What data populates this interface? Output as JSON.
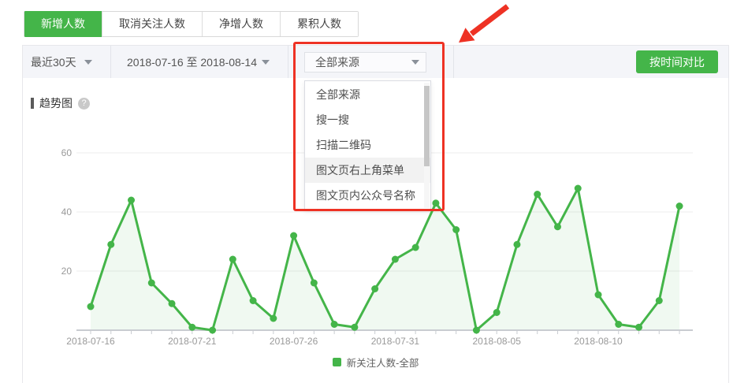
{
  "tabs": [
    {
      "label": "新增人数",
      "active": true
    },
    {
      "label": "取消关注人数",
      "active": false
    },
    {
      "label": "净增人数",
      "active": false
    },
    {
      "label": "累积人数",
      "active": false
    }
  ],
  "filters": {
    "range_select": "最近30天",
    "date_range": "2018-07-16 至 2018-08-14",
    "source_select": "全部来源",
    "compare_button": "按时间对比"
  },
  "source_dropdown": {
    "options": [
      {
        "label": "全部来源",
        "highlighted": false
      },
      {
        "label": "搜一搜",
        "highlighted": false
      },
      {
        "label": "扫描二维码",
        "highlighted": false
      },
      {
        "label": "图文页右上角菜单",
        "highlighted": true
      },
      {
        "label": "图文页内公众号名称",
        "highlighted": false
      }
    ]
  },
  "section": {
    "title": "趋势图",
    "help_icon": "?"
  },
  "chart_data": {
    "type": "line",
    "title": "趋势图",
    "x": [
      "2018-07-16",
      "2018-07-17",
      "2018-07-18",
      "2018-07-19",
      "2018-07-20",
      "2018-07-21",
      "2018-07-22",
      "2018-07-23",
      "2018-07-24",
      "2018-07-25",
      "2018-07-26",
      "2018-07-27",
      "2018-07-28",
      "2018-07-29",
      "2018-07-30",
      "2018-07-31",
      "2018-08-01",
      "2018-08-02",
      "2018-08-03",
      "2018-08-04",
      "2018-08-05",
      "2018-08-06",
      "2018-08-07",
      "2018-08-08",
      "2018-08-09",
      "2018-08-10",
      "2018-08-11",
      "2018-08-12",
      "2018-08-13",
      "2018-08-14"
    ],
    "series": [
      {
        "name": "新关注人数-全部",
        "color": "#44b549",
        "values": [
          8,
          29,
          44,
          16,
          9,
          1,
          0,
          24,
          10,
          4,
          32,
          16,
          2,
          1,
          14,
          24,
          28,
          43,
          34,
          0,
          6,
          29,
          46,
          35,
          48,
          12,
          2,
          1,
          10,
          42
        ]
      }
    ],
    "y_ticks": [
      20,
      40,
      60
    ],
    "ylim": [
      0,
      60
    ],
    "x_tick_labels": [
      "2018-07-16",
      "2018-07-21",
      "2018-07-26",
      "2018-07-31",
      "2018-08-05",
      "2018-08-10"
    ],
    "x_label_every": 5,
    "grid": true,
    "legend_position": "bottom",
    "area_fill": "rgba(68,181,73,0.08)"
  },
  "colors": {
    "accent_green": "#44b549",
    "annotation_red": "#ee3224",
    "filter_bar_bg": "#f4f5f9",
    "axis_text": "#999999",
    "grid_line": "#ececec",
    "baseline": "#c9ccd1"
  }
}
